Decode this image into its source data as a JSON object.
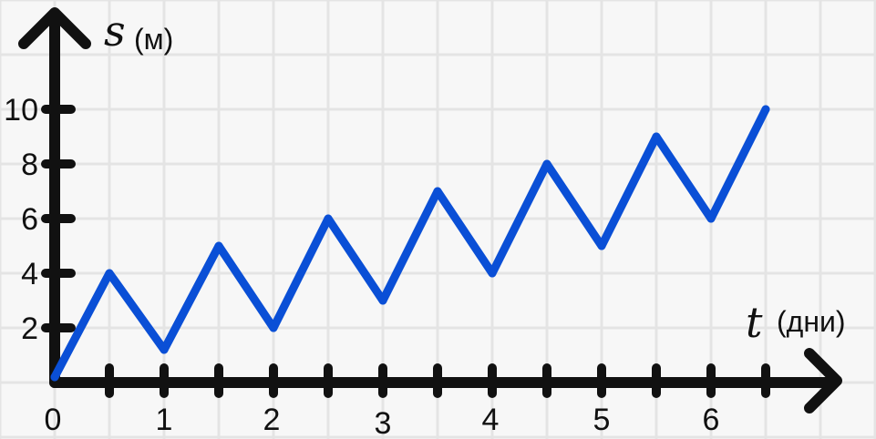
{
  "chart_data": {
    "type": "line",
    "title": "",
    "xlabel": "t",
    "xunit": "(дни)",
    "ylabel": "s",
    "yunit": "(м)",
    "xticks": [
      "0",
      "1",
      "2",
      "3",
      "4",
      "5",
      "6"
    ],
    "yticks": [
      "2",
      "4",
      "6",
      "8",
      "10"
    ],
    "xlim": [
      0,
      6.5
    ],
    "ylim": [
      0,
      10
    ],
    "grid": true,
    "line_color": "#0a4fd6",
    "axis_color": "#111111",
    "grid_color": "#e4e4e4",
    "series": [
      {
        "x": [
          0,
          0.5,
          1,
          1.5,
          2,
          2.5,
          3,
          3.5,
          4,
          4.5,
          5,
          5.5,
          6,
          6.5
        ],
        "y": [
          0.2,
          4,
          1.2,
          5,
          2,
          6,
          3,
          7,
          4,
          8,
          5,
          9,
          6,
          10
        ]
      }
    ]
  }
}
